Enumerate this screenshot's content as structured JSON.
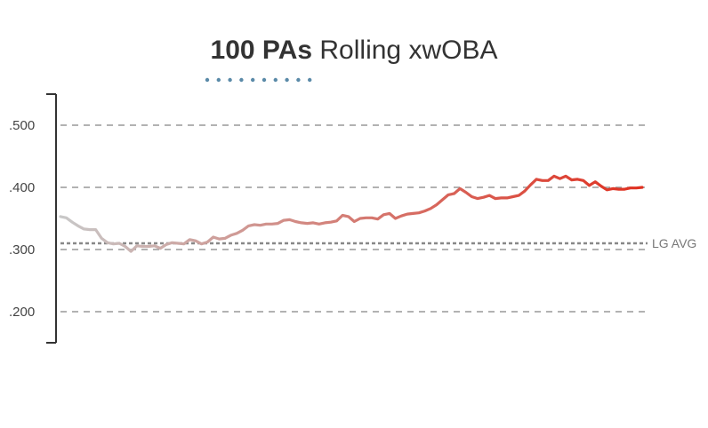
{
  "title": {
    "bold": "100 PAs",
    "rest": "Rolling xwOBA"
  },
  "colors": {
    "low": "#c8c8c8",
    "high": "#e03020",
    "accent_dots": "#5a8aa8",
    "grid": "#999999",
    "reference": "#888888",
    "axis": "#333333"
  },
  "chart_data": {
    "type": "line",
    "title": "100 PAs Rolling xwOBA",
    "xlabel": "",
    "ylabel": "",
    "ylim": [
      0.14,
      0.46
    ],
    "yticks": [
      {
        "value": 0.5,
        "label": ".500"
      },
      {
        "value": 0.4,
        "label": ".400"
      },
      {
        "value": 0.3,
        "label": ".300"
      },
      {
        "value": 0.2,
        "label": ".200"
      }
    ],
    "grid": "horizontal dashed",
    "reference_line": {
      "value": 0.31,
      "label": "LG AVG"
    },
    "series": [
      {
        "values": [
          0.353,
          0.351,
          0.344,
          0.338,
          0.333,
          0.332,
          0.332,
          0.318,
          0.311,
          0.309,
          0.31,
          0.305,
          0.297,
          0.306,
          0.305,
          0.305,
          0.306,
          0.302,
          0.308,
          0.311,
          0.31,
          0.309,
          0.316,
          0.314,
          0.309,
          0.312,
          0.32,
          0.317,
          0.318,
          0.323,
          0.326,
          0.331,
          0.338,
          0.34,
          0.339,
          0.341,
          0.341,
          0.342,
          0.347,
          0.348,
          0.345,
          0.343,
          0.342,
          0.343,
          0.341,
          0.343,
          0.344,
          0.346,
          0.355,
          0.353,
          0.345,
          0.35,
          0.351,
          0.351,
          0.349,
          0.356,
          0.358,
          0.35,
          0.354,
          0.357,
          0.358,
          0.359,
          0.362,
          0.366,
          0.372,
          0.38,
          0.388,
          0.39,
          0.398,
          0.392,
          0.385,
          0.382,
          0.384,
          0.387,
          0.382,
          0.383,
          0.383,
          0.385,
          0.387,
          0.394,
          0.404,
          0.413,
          0.411,
          0.411,
          0.418,
          0.414,
          0.418,
          0.412,
          0.413,
          0.411,
          0.403,
          0.409,
          0.402,
          0.396,
          0.398,
          0.397,
          0.397,
          0.399,
          0.399,
          0.4
        ]
      }
    ]
  }
}
